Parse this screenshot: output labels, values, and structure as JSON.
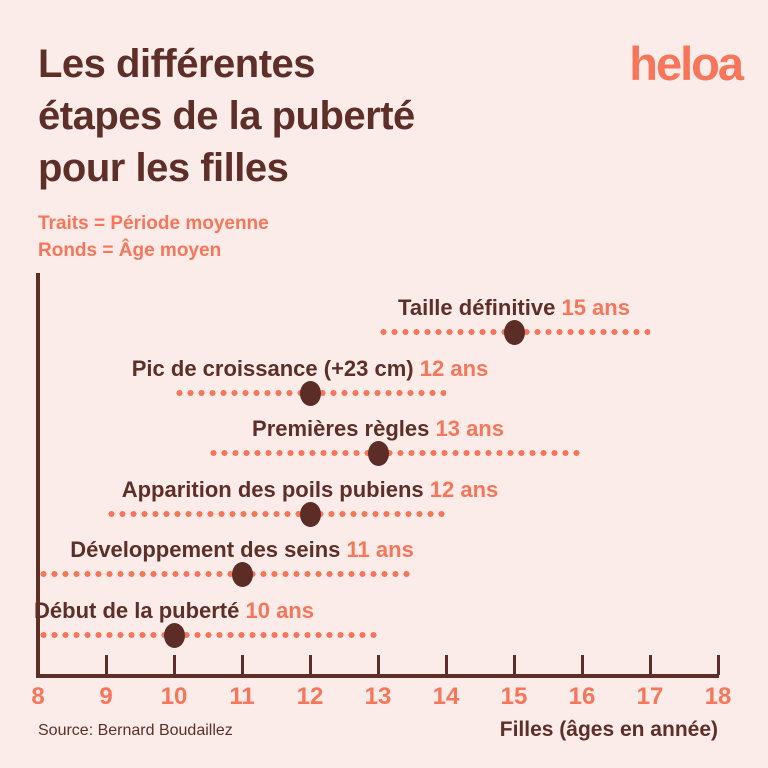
{
  "page": {
    "title": "Les différentes\nétapes de la puberté\npour les filles"
  },
  "brand": {
    "logo_text": "heloa"
  },
  "legend": {
    "line1": "Traits = Période moyenne",
    "line2": "Ronds = Âge moyen"
  },
  "footer": {
    "source": "Source: Bernard Boudaillez"
  },
  "colors": {
    "background": "#FBECE9",
    "dark_brown": "#5E2F28",
    "coral": "#F7765A"
  },
  "chart_data": {
    "type": "scatter",
    "title": "Les différentes étapes de la puberté pour les filles",
    "xlabel": "Filles (âges en année)",
    "xlim": [
      8,
      18
    ],
    "x_ticks": [
      8,
      9,
      10,
      11,
      12,
      13,
      14,
      15,
      16,
      17,
      18
    ],
    "legend": [
      "Traits = Période moyenne",
      "Ronds = Âge moyen"
    ],
    "rows": [
      {
        "label": "Taille définitive",
        "age_text": "15 ans",
        "mean_age": 15,
        "period": [
          13,
          17
        ]
      },
      {
        "label": "Pic de croissance (+23 cm)",
        "age_text": "12 ans",
        "mean_age": 12,
        "period": [
          10,
          14
        ]
      },
      {
        "label": "Premières règles",
        "age_text": "13 ans",
        "mean_age": 13,
        "period": [
          10.5,
          16
        ]
      },
      {
        "label": "Apparition des poils pubiens",
        "age_text": "12 ans",
        "mean_age": 12,
        "period": [
          9,
          14
        ]
      },
      {
        "label": "Développement des seins",
        "age_text": "11 ans",
        "mean_age": 11,
        "period": [
          8,
          13.5
        ]
      },
      {
        "label": "Début de la puberté",
        "age_text": "10 ans",
        "mean_age": 10,
        "period": [
          8,
          13
        ]
      }
    ]
  }
}
